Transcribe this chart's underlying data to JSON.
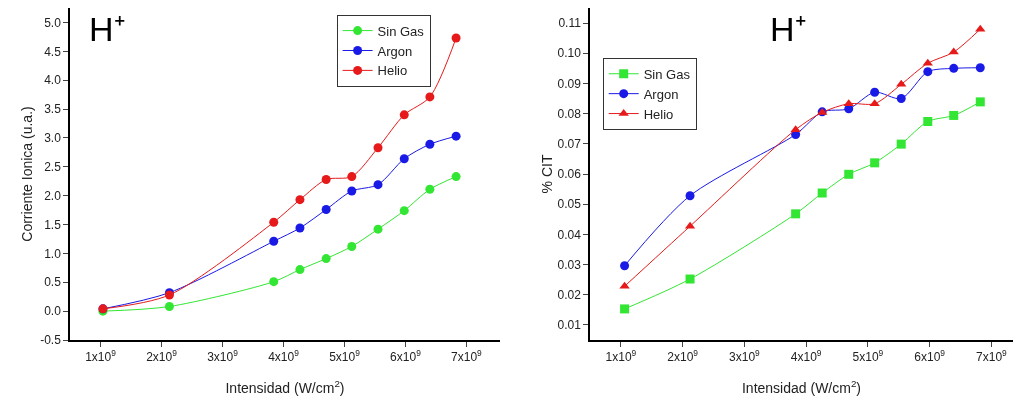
{
  "chart_data": [
    {
      "type": "line",
      "xlabel": "Intensidad (W/cm$^{2}$)",
      "ylabel": "Corriente Ionica (u.a.)",
      "annotations": [
        "H⁺"
      ],
      "x": [
        1040000000.0,
        2130000000.0,
        3840000000.0,
        4270000000.0,
        4700000000.0,
        5120000000.0,
        5550000000.0,
        5980000000.0,
        6400000000.0,
        6830000000.0
      ],
      "series": [
        {
          "name": "Sin Gas",
          "color": "#33e633",
          "marker": "circle",
          "values": [
            0.0,
            0.08,
            0.51,
            0.72,
            0.91,
            1.12,
            1.42,
            1.74,
            2.11,
            2.33
          ]
        },
        {
          "name": "Argon",
          "color": "#1a1ae6",
          "marker": "circle",
          "values": [
            0.04,
            0.32,
            1.21,
            1.44,
            1.76,
            2.08,
            2.19,
            2.64,
            2.89,
            3.03
          ]
        },
        {
          "name": "Helio",
          "color": "#e61a1a",
          "marker": "circle",
          "values": [
            0.04,
            0.28,
            1.54,
            1.93,
            2.28,
            2.33,
            2.83,
            3.4,
            3.71,
            4.73
          ]
        }
      ],
      "xlim": [
        500000000.0,
        7550000000.0
      ],
      "xticks": [
        {
          "value": 1000000000.0,
          "label": "1x10$^{9}$"
        },
        {
          "value": 2000000000.0,
          "label": "2x10$^{9}$"
        },
        {
          "value": 3000000000.0,
          "label": "3x10$^{9}$"
        },
        {
          "value": 4000000000.0,
          "label": "4x10$^{9}$"
        },
        {
          "value": 5000000000.0,
          "label": "5x10$^{9}$"
        },
        {
          "value": 6000000000.0,
          "label": "6x10$^{9}$"
        },
        {
          "value": 7000000000.0,
          "label": "7x10$^{9}$"
        }
      ],
      "ylim": [
        -0.5,
        5.25
      ],
      "yticks": [
        -0.5,
        {
          "value": 0,
          "label": "0.0"
        },
        0.5,
        {
          "value": 1,
          "label": "1.0"
        },
        1.5,
        {
          "value": 2,
          "label": "2.0"
        },
        2.5,
        {
          "value": 3,
          "label": "3.0"
        },
        3.5,
        {
          "value": 4,
          "label": "4.0"
        },
        4.5,
        {
          "value": 5,
          "label": "5.0"
        }
      ],
      "grid": false,
      "legend": "top right",
      "line_style": "solid"
    },
    {
      "type": "line",
      "xlabel": "Intensidad (W/cm$^{2}$)",
      "ylabel": "% CIT",
      "annotations": [
        "H⁺"
      ],
      "x": [
        1060000000.0,
        2120000000.0,
        3830000000.0,
        4260000000.0,
        4690000000.0,
        5110000000.0,
        5540000000.0,
        5970000000.0,
        6390000000.0,
        6820000000.0
      ],
      "series": [
        {
          "name": "Sin Gas",
          "color": "#33e633",
          "marker": "square",
          "values": [
            0.0153,
            0.0252,
            0.0468,
            0.0537,
            0.0599,
            0.0637,
            0.0699,
            0.0774,
            0.0794,
            0.0839
          ]
        },
        {
          "name": "Argon",
          "color": "#1a1ae6",
          "marker": "circle",
          "values": [
            0.0296,
            0.0528,
            0.0731,
            0.0806,
            0.0816,
            0.0871,
            0.085,
            0.0939,
            0.095,
            0.0952
          ]
        },
        {
          "name": "Helio",
          "color": "#e61a1a",
          "marker": "triangle",
          "values": [
            0.0228,
            0.0427,
            0.0747,
            0.0804,
            0.0833,
            0.0833,
            0.0897,
            0.0967,
            0.1004,
            0.108
          ]
        }
      ],
      "xlim": [
        500000000.0,
        7350000000.0
      ],
      "xticks": [
        {
          "value": 1000000000.0,
          "label": "1x10$^{9}$"
        },
        {
          "value": 2000000000.0,
          "label": "2x10$^{9}$"
        },
        {
          "value": 3000000000.0,
          "label": "3x10$^{9}$"
        },
        {
          "value": 4000000000.0,
          "label": "4x10$^{9}$"
        },
        {
          "value": 5000000000.0,
          "label": "5x10$^{9}$"
        },
        {
          "value": 6000000000.0,
          "label": "6x10$^{9}$"
        },
        {
          "value": 7000000000.0,
          "label": "7x10$^{9}$"
        }
      ],
      "ylim": [
        0.005,
        0.115
      ],
      "yticks": [
        0.01,
        0.02,
        0.03,
        0.04,
        0.05,
        0.06,
        0.07,
        0.08,
        0.09,
        {
          "value": 0.1,
          "label": "0.10"
        },
        0.11
      ],
      "grid": false,
      "legend": "top left",
      "line_style": "solid"
    }
  ]
}
